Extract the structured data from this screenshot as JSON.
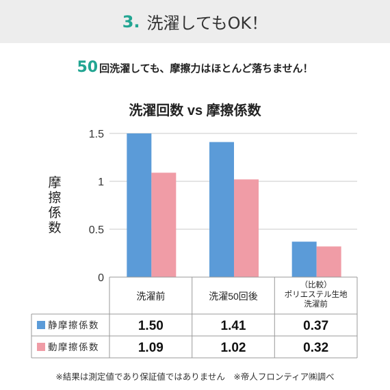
{
  "header": {
    "number": "3.",
    "title": "洗濯してもOK！"
  },
  "subtitle": {
    "emph": "50",
    "text": "回洗濯しても、摩擦力はほとんど落ちません！"
  },
  "footer": {
    "note": "※結果は測定値であり保証値ではありません　※帝人フロンティア㈱調べ"
  },
  "chart_data": {
    "type": "bar",
    "title": "洗濯回数 vs 摩擦係数",
    "ylabel": "摩擦係数",
    "xlabel": "",
    "ylim": [
      0,
      1.5
    ],
    "yticks": [
      "0",
      "0.5",
      "1",
      "1.5"
    ],
    "categories": [
      "洗濯前",
      "洗濯50回後",
      "（比較）ポリエステル生地洗濯前"
    ],
    "category_lines": [
      [
        "洗濯前"
      ],
      [
        "洗濯50回後"
      ],
      [
        "（比較）",
        "ポリエステル生地",
        "洗濯前"
      ]
    ],
    "series": [
      {
        "name": "静摩擦係数",
        "values": [
          1.5,
          1.41,
          0.37
        ],
        "labels": [
          "1.50",
          "1.41",
          "0.37"
        ],
        "color": "#5b9bd8"
      },
      {
        "name": "動摩擦係数",
        "values": [
          1.09,
          1.02,
          0.32
        ],
        "labels": [
          "1.09",
          "1.02",
          "0.32"
        ],
        "color": "#f09ca6"
      }
    ],
    "grid": true
  }
}
